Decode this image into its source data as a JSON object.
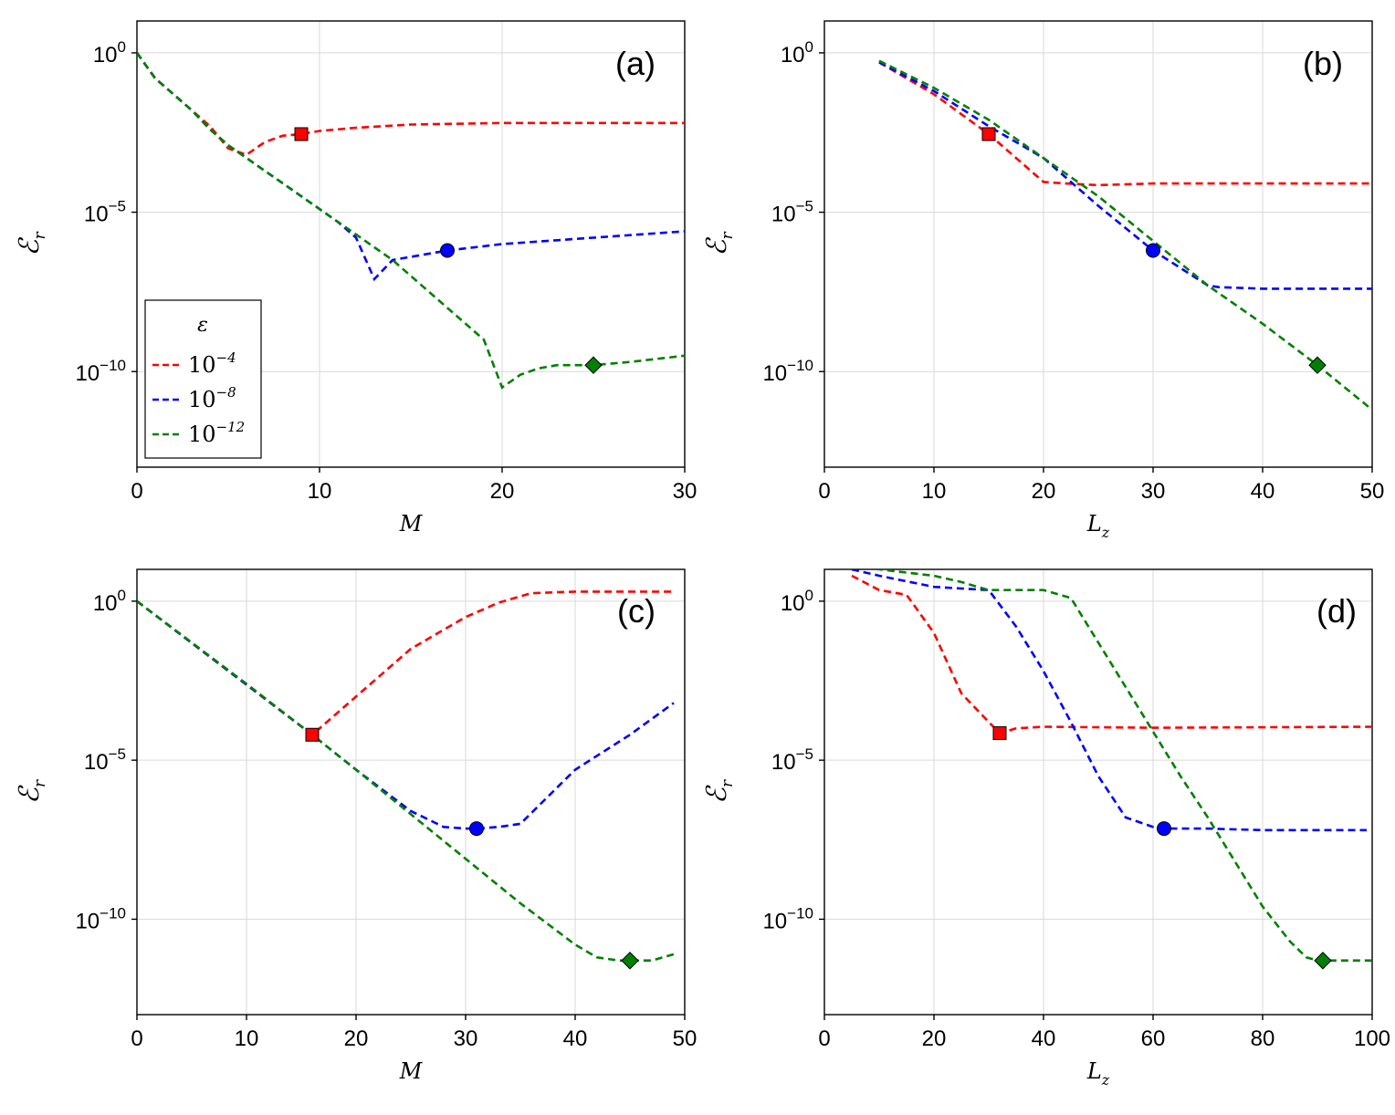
{
  "legend": {
    "title": "ε",
    "entries": [
      {
        "label": "10",
        "exp": "−4",
        "color": "#ff0000"
      },
      {
        "label": "10",
        "exp": "−8",
        "color": "#0000ff"
      },
      {
        "label": "10",
        "exp": "−12",
        "color": "#008000"
      }
    ],
    "placement": "lower-left of panel (a)"
  },
  "colors": {
    "red": "#ff0000",
    "blue": "#0000ff",
    "green": "#008000"
  },
  "chart_data": [
    {
      "type": "line",
      "panel_label": "(a)",
      "xlabel": "M",
      "ylabel": "ℰ",
      "ylabel_sub": "r",
      "xscale": "linear",
      "yscale": "log",
      "xlim": [
        0,
        30
      ],
      "ylim_log10": [
        -13,
        1
      ],
      "xticks": [
        0,
        10,
        20,
        30
      ],
      "xtick_labels": [
        "0",
        "10",
        "20",
        "30"
      ],
      "yticks_log10": [
        0,
        -5,
        -10
      ],
      "ytick_labels": [
        {
          "base": "10",
          "exp": "0"
        },
        {
          "base": "10",
          "exp": "−5"
        },
        {
          "base": "10",
          "exp": "−10"
        }
      ],
      "grid": true,
      "series": [
        {
          "name": "10^-4",
          "color": "#ff0000",
          "marker": "square",
          "x": [
            0,
            1,
            2,
            3,
            4,
            5,
            6,
            7,
            8,
            9,
            10,
            12,
            15,
            20,
            25,
            30
          ],
          "log10_y": [
            0,
            -0.8,
            -1.3,
            -1.8,
            -2.3,
            -3.0,
            -3.2,
            -2.8,
            -2.6,
            -2.55,
            -2.45,
            -2.35,
            -2.25,
            -2.2,
            -2.2,
            -2.2
          ],
          "marker_point": {
            "x": 9,
            "log10_y": -2.55
          }
        },
        {
          "name": "10^-8",
          "color": "#0000ff",
          "marker": "circle",
          "x": [
            0,
            1,
            2,
            3,
            4,
            5,
            6,
            7,
            8,
            9,
            10,
            11,
            12,
            13,
            14,
            15,
            17,
            20,
            25,
            30
          ],
          "log10_y": [
            0,
            -0.8,
            -1.3,
            -1.8,
            -2.4,
            -2.9,
            -3.3,
            -3.7,
            -4.1,
            -4.5,
            -4.9,
            -5.3,
            -5.8,
            -7.1,
            -6.5,
            -6.4,
            -6.2,
            -6.0,
            -5.8,
            -5.6
          ],
          "marker_point": {
            "x": 17,
            "log10_y": -6.2
          }
        },
        {
          "name": "10^-12",
          "color": "#008000",
          "marker": "diamond",
          "x": [
            0,
            1,
            2,
            3,
            4,
            5,
            6,
            7,
            8,
            9,
            10,
            11,
            12,
            13,
            14,
            15,
            16,
            17,
            18,
            19,
            20,
            21,
            22,
            23,
            25,
            27,
            30
          ],
          "log10_y": [
            0,
            -0.8,
            -1.3,
            -1.8,
            -2.4,
            -2.9,
            -3.3,
            -3.7,
            -4.1,
            -4.5,
            -4.9,
            -5.3,
            -5.7,
            -6.1,
            -6.5,
            -7.0,
            -7.5,
            -8.0,
            -8.5,
            -9.0,
            -10.5,
            -10.1,
            -9.9,
            -9.8,
            -9.8,
            -9.7,
            -9.5
          ],
          "marker_point": {
            "x": 25,
            "log10_y": -9.8
          }
        }
      ]
    },
    {
      "type": "line",
      "panel_label": "(b)",
      "xlabel": "L",
      "xlabel_sub": "z",
      "ylabel": "ℰ",
      "ylabel_sub": "r",
      "xscale": "linear",
      "yscale": "log",
      "xlim": [
        0,
        50
      ],
      "ylim_log10": [
        -13,
        1
      ],
      "xticks": [
        0,
        10,
        20,
        30,
        40,
        50
      ],
      "xtick_labels": [
        "0",
        "10",
        "20",
        "30",
        "40",
        "50"
      ],
      "yticks_log10": [
        0,
        -5,
        -10
      ],
      "ytick_labels": [
        {
          "base": "10",
          "exp": "0"
        },
        {
          "base": "10",
          "exp": "−5"
        },
        {
          "base": "10",
          "exp": "−10"
        }
      ],
      "grid": true,
      "series": [
        {
          "name": "10^-4",
          "color": "#ff0000",
          "marker": "square",
          "x": [
            5,
            10,
            15,
            20,
            22,
            25,
            30,
            40,
            50
          ],
          "log10_y": [
            -0.3,
            -1.3,
            -2.55,
            -4.05,
            -4.1,
            -4.15,
            -4.1,
            -4.1,
            -4.1
          ],
          "marker_point": {
            "x": 15,
            "log10_y": -2.55
          }
        },
        {
          "name": "10^-8",
          "color": "#0000ff",
          "marker": "circle",
          "x": [
            5,
            10,
            15,
            20,
            25,
            30,
            35,
            36,
            40,
            50
          ],
          "log10_y": [
            -0.3,
            -1.2,
            -2.3,
            -3.3,
            -4.8,
            -6.2,
            -7.3,
            -7.35,
            -7.4,
            -7.4
          ],
          "marker_point": {
            "x": 30,
            "log10_y": -6.2
          }
        },
        {
          "name": "10^-12",
          "color": "#008000",
          "marker": "diamond",
          "x": [
            5,
            10,
            15,
            20,
            25,
            30,
            35,
            40,
            45,
            50
          ],
          "log10_y": [
            -0.25,
            -1.1,
            -2.1,
            -3.3,
            -4.5,
            -5.9,
            -7.3,
            -8.5,
            -9.8,
            -11.2
          ],
          "marker_point": {
            "x": 45,
            "log10_y": -9.8
          }
        }
      ]
    },
    {
      "type": "line",
      "panel_label": "(c)",
      "xlabel": "M",
      "ylabel": "ℰ",
      "ylabel_sub": "r",
      "xscale": "linear",
      "yscale": "log",
      "xlim": [
        0,
        50
      ],
      "ylim_log10": [
        -13,
        1
      ],
      "xticks": [
        0,
        10,
        20,
        30,
        40,
        50
      ],
      "xtick_labels": [
        "0",
        "10",
        "20",
        "30",
        "40",
        "50"
      ],
      "yticks_log10": [
        0,
        -5,
        -10
      ],
      "ytick_labels": [
        {
          "base": "10",
          "exp": "0"
        },
        {
          "base": "10",
          "exp": "−5"
        },
        {
          "base": "10",
          "exp": "−10"
        }
      ],
      "grid": true,
      "series": [
        {
          "name": "10^-4",
          "color": "#ff0000",
          "marker": "square",
          "x": [
            0,
            16,
            20,
            25,
            30,
            33,
            36,
            40,
            45,
            49
          ],
          "log10_y": [
            0,
            -4.2,
            -3.0,
            -1.5,
            -0.5,
            -0.05,
            0.25,
            0.3,
            0.3,
            0.3
          ],
          "marker_point": {
            "x": 16,
            "log10_y": -4.2
          }
        },
        {
          "name": "10^-8",
          "color": "#0000ff",
          "marker": "circle",
          "x": [
            0,
            16,
            20,
            25,
            28,
            30,
            31,
            33,
            35,
            40,
            45,
            49
          ],
          "log10_y": [
            0,
            -4.2,
            -5.3,
            -6.6,
            -7.1,
            -7.15,
            -7.15,
            -7.1,
            -7.0,
            -5.3,
            -4.2,
            -3.2
          ],
          "marker_point": {
            "x": 31,
            "log10_y": -7.15
          }
        },
        {
          "name": "10^-12",
          "color": "#008000",
          "marker": "diamond",
          "x": [
            0,
            10,
            16,
            20,
            25,
            30,
            35,
            40,
            42,
            44,
            45,
            47,
            49
          ],
          "log10_y": [
            0,
            -2.6,
            -4.2,
            -5.3,
            -6.7,
            -8.1,
            -9.5,
            -10.8,
            -11.2,
            -11.3,
            -11.3,
            -11.3,
            -11.1
          ],
          "marker_point": {
            "x": 45,
            "log10_y": -11.3
          }
        }
      ]
    },
    {
      "type": "line",
      "panel_label": "(d)",
      "xlabel": "L",
      "xlabel_sub": "z",
      "ylabel": "ℰ",
      "ylabel_sub": "r",
      "xscale": "linear",
      "yscale": "log",
      "xlim": [
        0,
        100
      ],
      "ylim_log10": [
        -13,
        1
      ],
      "xticks": [
        0,
        20,
        40,
        60,
        80,
        100
      ],
      "xtick_labels": [
        "0",
        "20",
        "40",
        "60",
        "80",
        "100"
      ],
      "yticks_log10": [
        0,
        -5,
        -10
      ],
      "ytick_labels": [
        {
          "base": "10",
          "exp": "0"
        },
        {
          "base": "10",
          "exp": "−5"
        },
        {
          "base": "10",
          "exp": "−10"
        }
      ],
      "grid": true,
      "series": [
        {
          "name": "10^-4",
          "color": "#ff0000",
          "marker": "square",
          "x": [
            5,
            10,
            15,
            20,
            25,
            30,
            32,
            35,
            40,
            60,
            100
          ],
          "log10_y": [
            0.8,
            0.35,
            0.2,
            -1.0,
            -2.9,
            -3.8,
            -4.15,
            -4.0,
            -3.95,
            -3.98,
            -3.95
          ],
          "marker_point": {
            "x": 32,
            "log10_y": -4.15
          }
        },
        {
          "name": "10^-8",
          "color": "#0000ff",
          "marker": "circle",
          "x": [
            5,
            10,
            20,
            30,
            35,
            40,
            45,
            50,
            55,
            60,
            62,
            70,
            80,
            90,
            99
          ],
          "log10_y": [
            1.0,
            0.8,
            0.45,
            0.35,
            -0.8,
            -2.2,
            -3.8,
            -5.5,
            -6.8,
            -7.1,
            -7.15,
            -7.15,
            -7.2,
            -7.2,
            -7.2
          ],
          "marker_point": {
            "x": 62,
            "log10_y": -7.15
          }
        },
        {
          "name": "10^-12",
          "color": "#008000",
          "marker": "diamond",
          "x": [
            5,
            10,
            20,
            25,
            30,
            40,
            45,
            50,
            55,
            60,
            65,
            70,
            75,
            80,
            85,
            88,
            90,
            91,
            95,
            100
          ],
          "log10_y": [
            1.1,
            1.0,
            0.8,
            0.6,
            0.35,
            0.35,
            0.1,
            -1.3,
            -2.7,
            -4.1,
            -5.5,
            -6.8,
            -8.2,
            -9.6,
            -10.7,
            -11.2,
            -11.3,
            -11.3,
            -11.3,
            -11.3
          ],
          "marker_point": {
            "x": 91,
            "log10_y": -11.3
          }
        }
      ]
    }
  ]
}
